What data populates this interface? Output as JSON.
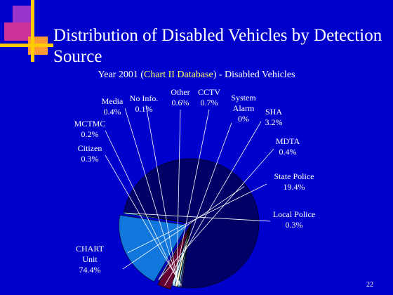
{
  "title": "Distribution of Disabled Vehicles by Detection Source",
  "subtitle": {
    "prefix": "Year 2001 (",
    "highlight": "Chart II Database",
    "suffix": ") - Disabled Vehicles"
  },
  "page_number": "22",
  "colors": {
    "background": "#0000cc",
    "logo_purple": "#9933cc",
    "logo_magenta": "#cc3399",
    "logo_orange": "#ff9933",
    "logo_yellow": "#ffcc00"
  },
  "chart_data": {
    "type": "pie",
    "title": "",
    "slices": [
      {
        "label": "CHART Unit",
        "label_lines": [
          "CHART",
          "Unit",
          "74.4%"
        ],
        "value": 74.4,
        "color": "#000066"
      },
      {
        "label": "Citizen",
        "label_lines": [
          "Citizen",
          "0.3%"
        ],
        "value": 0.3,
        "color": "#4444cc"
      },
      {
        "label": "MCTMC",
        "label_lines": [
          "MCTMC",
          "0.2%"
        ],
        "value": 0.2,
        "color": "#cc99cc"
      },
      {
        "label": "Media",
        "label_lines": [
          "Media",
          "0.4%"
        ],
        "value": 0.4,
        "color": "#66ccff"
      },
      {
        "label": "No Info.",
        "label_lines": [
          "No Info.",
          "0.1%"
        ],
        "value": 0.1,
        "color": "#cc3366"
      },
      {
        "label": "Other",
        "label_lines": [
          "Other",
          "0.6%"
        ],
        "value": 0.6,
        "color": "#ffffcc"
      },
      {
        "label": "CCTV",
        "label_lines": [
          "CCTV",
          "0.7%"
        ],
        "value": 0.7,
        "color": "#99ccff"
      },
      {
        "label": "System Alarm",
        "label_lines": [
          "System",
          "Alarm",
          "0%"
        ],
        "value": 0,
        "color": "#339966"
      },
      {
        "label": "SHA",
        "label_lines": [
          "SHA",
          "3.2%"
        ],
        "value": 3.2,
        "color": "#660033"
      },
      {
        "label": "MDTA",
        "label_lines": [
          "MDTA",
          "0.4%"
        ],
        "value": 0.4,
        "color": "#9999ff"
      },
      {
        "label": "State Police",
        "label_lines": [
          "State Police",
          "19.4%"
        ],
        "value": 19.4,
        "color": "#1177dd"
      },
      {
        "label": "Local Police",
        "label_lines": [
          "Local Police",
          "0.3%"
        ],
        "value": 0.3,
        "color": "#33ccff"
      }
    ]
  }
}
